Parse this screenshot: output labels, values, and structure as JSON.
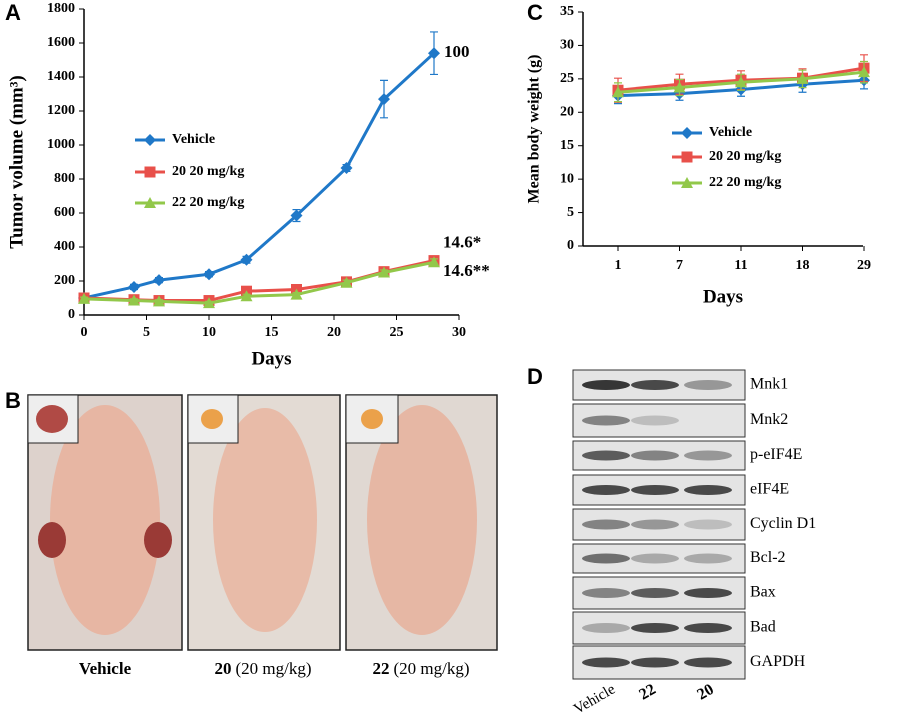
{
  "chart_data": [
    {
      "type": "line",
      "panel": "A",
      "xlabel": "Days",
      "ylabel": "Tumor volume (mm³)",
      "x": [
        0,
        4,
        6,
        10,
        13,
        17,
        21,
        24,
        28
      ],
      "xlim": [
        0,
        30
      ],
      "xticks": [
        0,
        5,
        10,
        15,
        20,
        25,
        30
      ],
      "ylim": [
        0,
        1800
      ],
      "yticks": [
        0,
        200,
        400,
        600,
        800,
        1000,
        1200,
        1400,
        1600,
        1800
      ],
      "series": [
        {
          "name": "Vehicle",
          "color": "#1f78c8",
          "marker": "diamond",
          "values": [
            100,
            165,
            205,
            240,
            325,
            585,
            865,
            1270,
            1540
          ],
          "errors": [
            10,
            15,
            15,
            15,
            20,
            35,
            20,
            110,
            125
          ]
        },
        {
          "name": "20 20 mg/kg",
          "color": "#e8504a",
          "marker": "square",
          "values": [
            100,
            90,
            85,
            85,
            140,
            150,
            195,
            255,
            320
          ],
          "errors": [
            10,
            10,
            10,
            10,
            12,
            12,
            15,
            15,
            20
          ]
        },
        {
          "name": "22 20 mg/kg",
          "color": "#92c84a",
          "marker": "triangle",
          "values": [
            95,
            85,
            80,
            70,
            110,
            120,
            190,
            250,
            310
          ],
          "errors": [
            10,
            10,
            10,
            10,
            12,
            12,
            15,
            15,
            20
          ]
        }
      ],
      "annotations": [
        "100",
        "14.6*",
        "14.6**"
      ]
    },
    {
      "type": "line",
      "panel": "C",
      "xlabel": "Days",
      "ylabel": "Mean body weight (g)",
      "categories": [
        "1",
        "7",
        "11",
        "18",
        "29"
      ],
      "ylim": [
        0,
        35
      ],
      "yticks": [
        0,
        5,
        10,
        15,
        20,
        25,
        30,
        35
      ],
      "series": [
        {
          "name": "Vehicle",
          "color": "#1f78c8",
          "marker": "diamond",
          "values": [
            22.5,
            22.8,
            23.4,
            24.2,
            24.8
          ],
          "errors": [
            1.2,
            1.0,
            1.0,
            1.2,
            1.3
          ]
        },
        {
          "name": "20 20 mg/kg",
          "color": "#e8504a",
          "marker": "square",
          "values": [
            23.3,
            24.2,
            24.8,
            25.1,
            26.6
          ],
          "errors": [
            1.8,
            1.5,
            1.4,
            1.4,
            2.0
          ]
        },
        {
          "name": "22 20 mg/kg",
          "color": "#92c84a",
          "marker": "triangle",
          "values": [
            23.0,
            23.7,
            24.5,
            25.0,
            26.0
          ],
          "errors": [
            1.4,
            1.2,
            1.2,
            1.3,
            1.6
          ]
        }
      ]
    }
  ],
  "photos": {
    "panel": "B",
    "captions": [
      {
        "bold": "Vehicle"
      },
      {
        "bold": "20",
        "text": "(20 mg/kg)"
      },
      {
        "bold": "22",
        "text": "(20 mg/kg)"
      }
    ]
  },
  "blot": {
    "panel": "D",
    "bands": [
      "Mnk1",
      "Mnk2",
      "p-eIF4E",
      "eIF4E",
      "Cyclin D1",
      "Bcl-2",
      "Bax",
      "Bad",
      "GAPDH"
    ],
    "lanes": [
      "Vehicle",
      "22",
      "20"
    ]
  }
}
